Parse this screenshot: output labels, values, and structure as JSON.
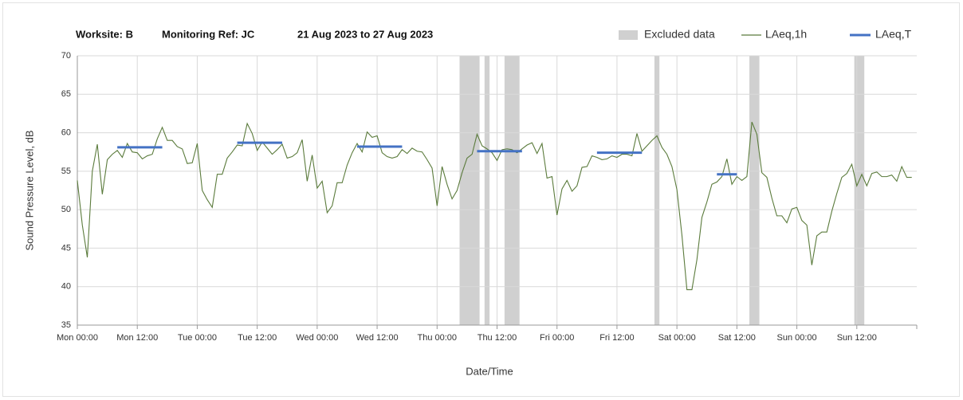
{
  "chart_data": {
    "type": "line",
    "title": [
      "Worksite: B",
      "Monitoring Ref: JC",
      "21 Aug 2023 to 27 Aug 2023"
    ],
    "xlabel": "Date/Time",
    "ylabel": "Sound Pressure Level, dB",
    "xlim": [
      0,
      168
    ],
    "ylim": [
      35,
      70
    ],
    "yticks": [
      35,
      40,
      45,
      50,
      55,
      60,
      65,
      70
    ],
    "xticks": [
      {
        "value": 0,
        "label": "Mon 00:00"
      },
      {
        "value": 12,
        "label": "Mon 12:00"
      },
      {
        "value": 24,
        "label": "Tue 00:00"
      },
      {
        "value": 36,
        "label": "Tue 12:00"
      },
      {
        "value": 48,
        "label": "Wed 00:00"
      },
      {
        "value": 60,
        "label": "Wed 12:00"
      },
      {
        "value": 72,
        "label": "Thu 00:00"
      },
      {
        "value": 84,
        "label": "Thu 12:00"
      },
      {
        "value": 96,
        "label": "Fri 00:00"
      },
      {
        "value": 108,
        "label": "Fri 12:00"
      },
      {
        "value": 120,
        "label": "Sat 00:00"
      },
      {
        "value": 132,
        "label": "Sat 12:00"
      },
      {
        "value": 144,
        "label": "Sun 00:00"
      },
      {
        "value": 156,
        "label": "Sun 12:00"
      }
    ],
    "grid": true,
    "legend": "top-right",
    "excluded": {
      "name": "Excluded data",
      "color": "#d0d0d0",
      "ranges": [
        [
          76.5,
          80.5
        ],
        [
          81.5,
          82.5
        ],
        [
          85.5,
          88.5
        ],
        [
          115.5,
          116.5
        ],
        [
          134.5,
          136.5
        ],
        [
          155.5,
          157.5
        ]
      ]
    },
    "series": [
      {
        "name": "LAeq,1h",
        "color": "#5b7b3c",
        "x": [
          0,
          1,
          2,
          3,
          4,
          5,
          6,
          7,
          8,
          9,
          10,
          11,
          12,
          13,
          14,
          15,
          16,
          17,
          18,
          19,
          20,
          21,
          22,
          23,
          24,
          25,
          26,
          27,
          28,
          29,
          30,
          31,
          32,
          33,
          34,
          35,
          36,
          37,
          38,
          39,
          40,
          41,
          42,
          43,
          44,
          45,
          46,
          47,
          48,
          49,
          50,
          51,
          52,
          53,
          54,
          55,
          56,
          57,
          58,
          59,
          60,
          61,
          62,
          63,
          64,
          65,
          66,
          67,
          68,
          69,
          70,
          71,
          72,
          73,
          74,
          75,
          76,
          77,
          78,
          79,
          80,
          81,
          82,
          83,
          84,
          85,
          86,
          87,
          88,
          89,
          90,
          91,
          92,
          93,
          94,
          95,
          96,
          97,
          98,
          99,
          100,
          101,
          102,
          103,
          104,
          105,
          106,
          107,
          108,
          109,
          110,
          111,
          112,
          113,
          114,
          115,
          116,
          117,
          118,
          119,
          120,
          121,
          122,
          123,
          124,
          125,
          126,
          127,
          128,
          129,
          130,
          131,
          132,
          133,
          134,
          135,
          136,
          137,
          138,
          139,
          140,
          141,
          142,
          143,
          144,
          145,
          146,
          147,
          148,
          149,
          150,
          151,
          152,
          153,
          154,
          155,
          156,
          157,
          158,
          159,
          160,
          161,
          162,
          163,
          164,
          165,
          166,
          167
        ],
        "values": [
          53.8,
          48,
          43.8,
          55,
          58.5,
          52,
          56.5,
          57.2,
          57.7,
          56.8,
          58.6,
          57.5,
          57.4,
          56.6,
          57,
          57.2,
          59.2,
          60.7,
          59,
          59,
          58.2,
          57.9,
          56,
          56.1,
          58.6,
          52.5,
          51.3,
          50.3,
          54.6,
          54.6,
          56.7,
          57.5,
          58.4,
          58.3,
          61.2,
          59.9,
          57.7,
          58.8,
          58,
          57.2,
          57.8,
          58.5,
          56.7,
          56.9,
          57.4,
          59.1,
          53.7,
          57.1,
          52.8,
          53.7,
          49.6,
          50.5,
          53.5,
          53.5,
          55.8,
          57.4,
          58.6,
          57.5,
          60.1,
          59.4,
          59.6,
          57.4,
          56.9,
          56.7,
          56.9,
          57.8,
          57.3,
          58,
          57.6,
          57.5,
          56.5,
          55.4,
          50.5,
          55.6,
          53.3,
          51.4,
          52.5,
          54.8,
          56.7,
          57.2,
          59.8,
          58.3,
          57.9,
          57.4,
          56.4,
          57.8,
          57.9,
          57.8,
          57.4,
          57.9,
          58.4,
          58.7,
          57.3,
          58.6,
          54.1,
          54.3,
          49.3,
          52.7,
          53.8,
          52.4,
          53.1,
          55.5,
          55.6,
          57,
          56.8,
          56.5,
          56.6,
          57,
          56.8,
          57.2,
          57.2,
          57,
          59.9,
          57.6,
          58.3,
          59,
          59.6,
          58.1,
          57.2,
          55.6,
          52.6,
          46.7,
          39.6,
          39.6,
          43.5,
          49,
          51,
          53.3,
          53.6,
          54.3,
          56.6,
          53.3,
          54.3,
          53.8,
          54.3,
          61.4,
          59.8,
          54.8,
          54.2,
          51.5,
          49.2,
          49.2,
          48.3,
          50.1,
          50.3,
          48.6,
          48,
          42.8,
          46.6,
          47.1,
          47.1,
          49.8,
          52.1,
          54.2,
          54.7,
          55.9,
          53.1,
          54.6,
          53.1,
          54.7,
          54.9,
          54.3,
          54.3,
          54.5,
          53.7,
          55.6,
          54.2,
          54.2
        ]
      }
    ],
    "periods": {
      "name": "LAeq,T",
      "color": "#4472c4",
      "ranges": [
        [
          8,
          17
        ],
        [
          32,
          41
        ],
        [
          56,
          65
        ],
        [
          80,
          89
        ],
        [
          104,
          113
        ],
        [
          128,
          132
        ]
      ],
      "values": [
        58.1,
        58.7,
        58.2,
        57.6,
        57.4,
        54.6
      ]
    }
  }
}
